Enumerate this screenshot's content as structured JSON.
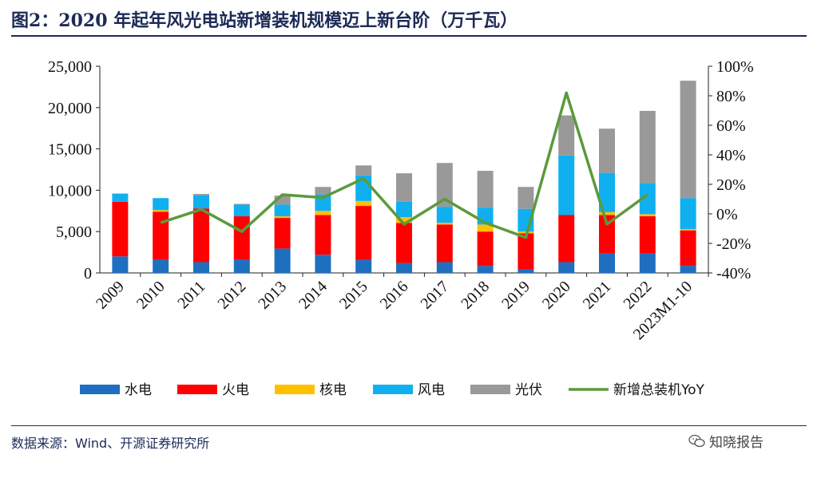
{
  "title": "图2：2020 年起年风光电站新增装机规模迈上新台阶（万千瓦）",
  "source": "数据来源：Wind、开源证券研究所",
  "watermark": "知晓报告",
  "chart_data": {
    "type": "bar",
    "stacked": true,
    "categories": [
      "2009",
      "2010",
      "2011",
      "2012",
      "2013",
      "2014",
      "2015",
      "2016",
      "2017",
      "2018",
      "2019",
      "2020",
      "2021",
      "2022",
      "2023M1-10"
    ],
    "series": [
      {
        "name": "水电",
        "color": "#1f6fc0",
        "values": [
          2000,
          1600,
          1300,
          1600,
          2950,
          2200,
          1600,
          1200,
          1300,
          850,
          400,
          1300,
          2350,
          2350,
          850
        ]
      },
      {
        "name": "火电",
        "color": "#ff0000",
        "values": [
          6600,
          5800,
          6500,
          5250,
          3700,
          4800,
          6500,
          4850,
          4550,
          4150,
          4400,
          5700,
          4650,
          4500,
          4300
        ]
      },
      {
        "name": "核电",
        "color": "#ffc000",
        "values": [
          0,
          200,
          0,
          0,
          200,
          500,
          600,
          700,
          200,
          850,
          200,
          0,
          350,
          250,
          150
        ]
      },
      {
        "name": "风电",
        "color": "#10b0f0",
        "values": [
          1000,
          1450,
          1600,
          1400,
          1400,
          2000,
          3100,
          1850,
          1950,
          2050,
          2750,
          7200,
          4750,
          3750,
          3750
        ]
      },
      {
        "name": "光伏",
        "color": "#999999",
        "values": [
          0,
          0,
          150,
          100,
          1100,
          900,
          1200,
          3450,
          5300,
          4450,
          2650,
          4850,
          5350,
          8750,
          14200
        ]
      }
    ],
    "line_series": {
      "name": "新增总装机YoY",
      "color": "#5b9a3c",
      "axis": "right",
      "values": [
        null,
        -6,
        3,
        -12,
        13,
        11,
        24,
        -7,
        10,
        -6,
        -16,
        82,
        -7,
        13,
        null
      ]
    },
    "ylim": [
      0,
      25000
    ],
    "yticks": [
      0,
      5000,
      10000,
      15000,
      20000,
      25000
    ],
    "ytick_labels": [
      "0",
      "5,000",
      "10,000",
      "15,000",
      "20,000",
      "25,000"
    ],
    "y2lim": [
      -40,
      100
    ],
    "y2ticks": [
      -40,
      -20,
      0,
      20,
      40,
      60,
      80,
      100
    ],
    "y2tick_labels": [
      "-40%",
      "-20%",
      "0%",
      "20%",
      "40%",
      "60%",
      "80%",
      "100%"
    ],
    "legend": [
      "水电",
      "火电",
      "核电",
      "风电",
      "光伏",
      "新增总装机YoY"
    ],
    "legend_position": "bottom"
  }
}
